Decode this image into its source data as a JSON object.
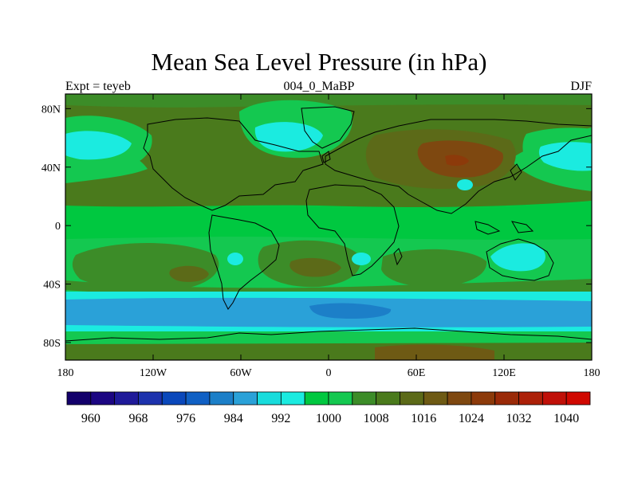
{
  "title": "Mean Sea Level Pressure (in hPa)",
  "left_label": "Expt = teyeb",
  "center_label": "004_0_MaBP",
  "right_label": "DJF",
  "lat_ticks": [
    {
      "value": 80,
      "label": "80N"
    },
    {
      "value": 40,
      "label": "40N"
    },
    {
      "value": 0,
      "label": "0"
    },
    {
      "value": -40,
      "label": "40S"
    },
    {
      "value": -80,
      "label": "80S"
    }
  ],
  "lon_ticks": [
    {
      "value": -180,
      "label": "180"
    },
    {
      "value": -120,
      "label": "120W"
    },
    {
      "value": -60,
      "label": "60W"
    },
    {
      "value": 0,
      "label": "0"
    },
    {
      "value": 60,
      "label": "60E"
    },
    {
      "value": 120,
      "label": "120E"
    },
    {
      "value": 180,
      "label": "180"
    }
  ],
  "colorbar": {
    "colors": [
      "#13006b",
      "#1c0682",
      "#1f1a99",
      "#1d32ad",
      "#0a48bb",
      "#1060c4",
      "#1c7fc8",
      "#2aa1d8",
      "#18dcdc",
      "#1bebe0",
      "#00c840",
      "#14c850",
      "#3c8c28",
      "#4a7a1c",
      "#5c6a18",
      "#6e5a14",
      "#7e4810",
      "#8c3a0a",
      "#9a2a08",
      "#ac2008",
      "#c01008",
      "#d00800"
    ],
    "labels": [
      "960",
      "968",
      "976",
      "984",
      "992",
      "1000",
      "1008",
      "1016",
      "1024",
      "1032",
      "1040"
    ]
  },
  "legend": {
    "0": "960 hPa",
    "1": "968 hPa",
    "2": "976 hPa",
    "3": "984 hPa",
    "4": "992 hPa",
    "5": "1000 hPa",
    "6": "1008 hPa",
    "7": "1016 hPa",
    "8": "1024 hPa"
  }
}
